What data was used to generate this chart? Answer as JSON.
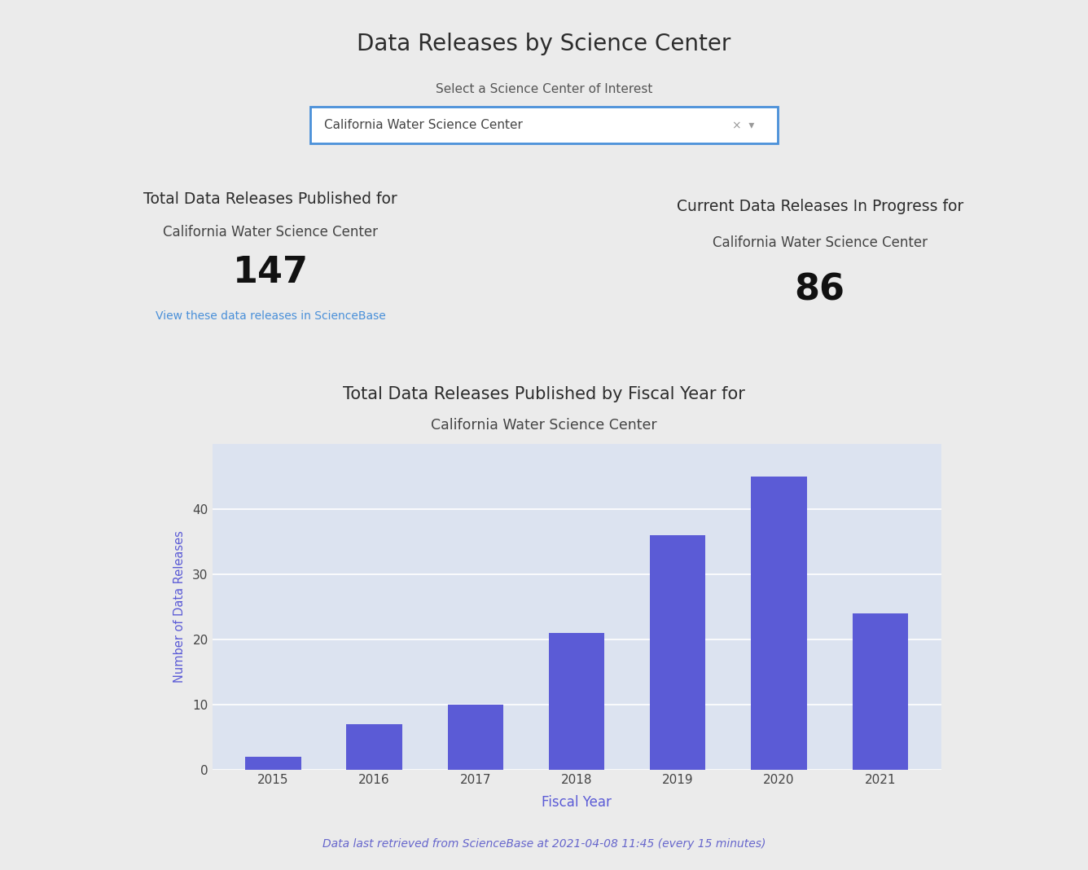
{
  "page_title": "Data Releases by Science Center",
  "dropdown_label": "Select a Science Center of Interest",
  "dropdown_value": "California Water Science Center",
  "page_bg": "#ebebeb",
  "box1_title_line1": "Total Data Releases Published for",
  "box1_title_line2": "California Water Science Center",
  "box1_value": "147",
  "box1_link": "View these data releases in ScienceBase",
  "box2_title_line1": "Current Data Releases In Progress for",
  "box2_title_line2": "California Water Science Center",
  "box2_value": "86",
  "chart_title_line1": "Total Data Releases Published by Fiscal Year for",
  "chart_title_line2": "California Water Science Center",
  "chart_xlabel": "Fiscal Year",
  "chart_ylabel": "Number of Data Releases",
  "fiscal_years": [
    "2015",
    "2016",
    "2017",
    "2018",
    "2019",
    "2020",
    "2021"
  ],
  "bar_values": [
    2,
    7,
    10,
    21,
    36,
    45,
    24
  ],
  "bar_color": "#5b5bd6",
  "chart_bg": "#dce3f0",
  "footer_text": "Data last retrieved from ScienceBase at 2021-04-08 11:45 (every 15 minutes)",
  "footer_color": "#6666cc",
  "box_bg": "#ffffff",
  "outer_box_bg": "#d8d8d8",
  "title_color": "#2c2c2c",
  "subtitle_color": "#444444",
  "link_color": "#4a90d9",
  "value_color": "#111111",
  "dropdown_border": "#4a90d9",
  "grid_color": "#ffffff",
  "axis_tick_color": "#444444",
  "axis_label_color": "#5b5bd6",
  "chart_outer_bg": "#d8d8d8",
  "chart_inner_bg": "#ffffff"
}
